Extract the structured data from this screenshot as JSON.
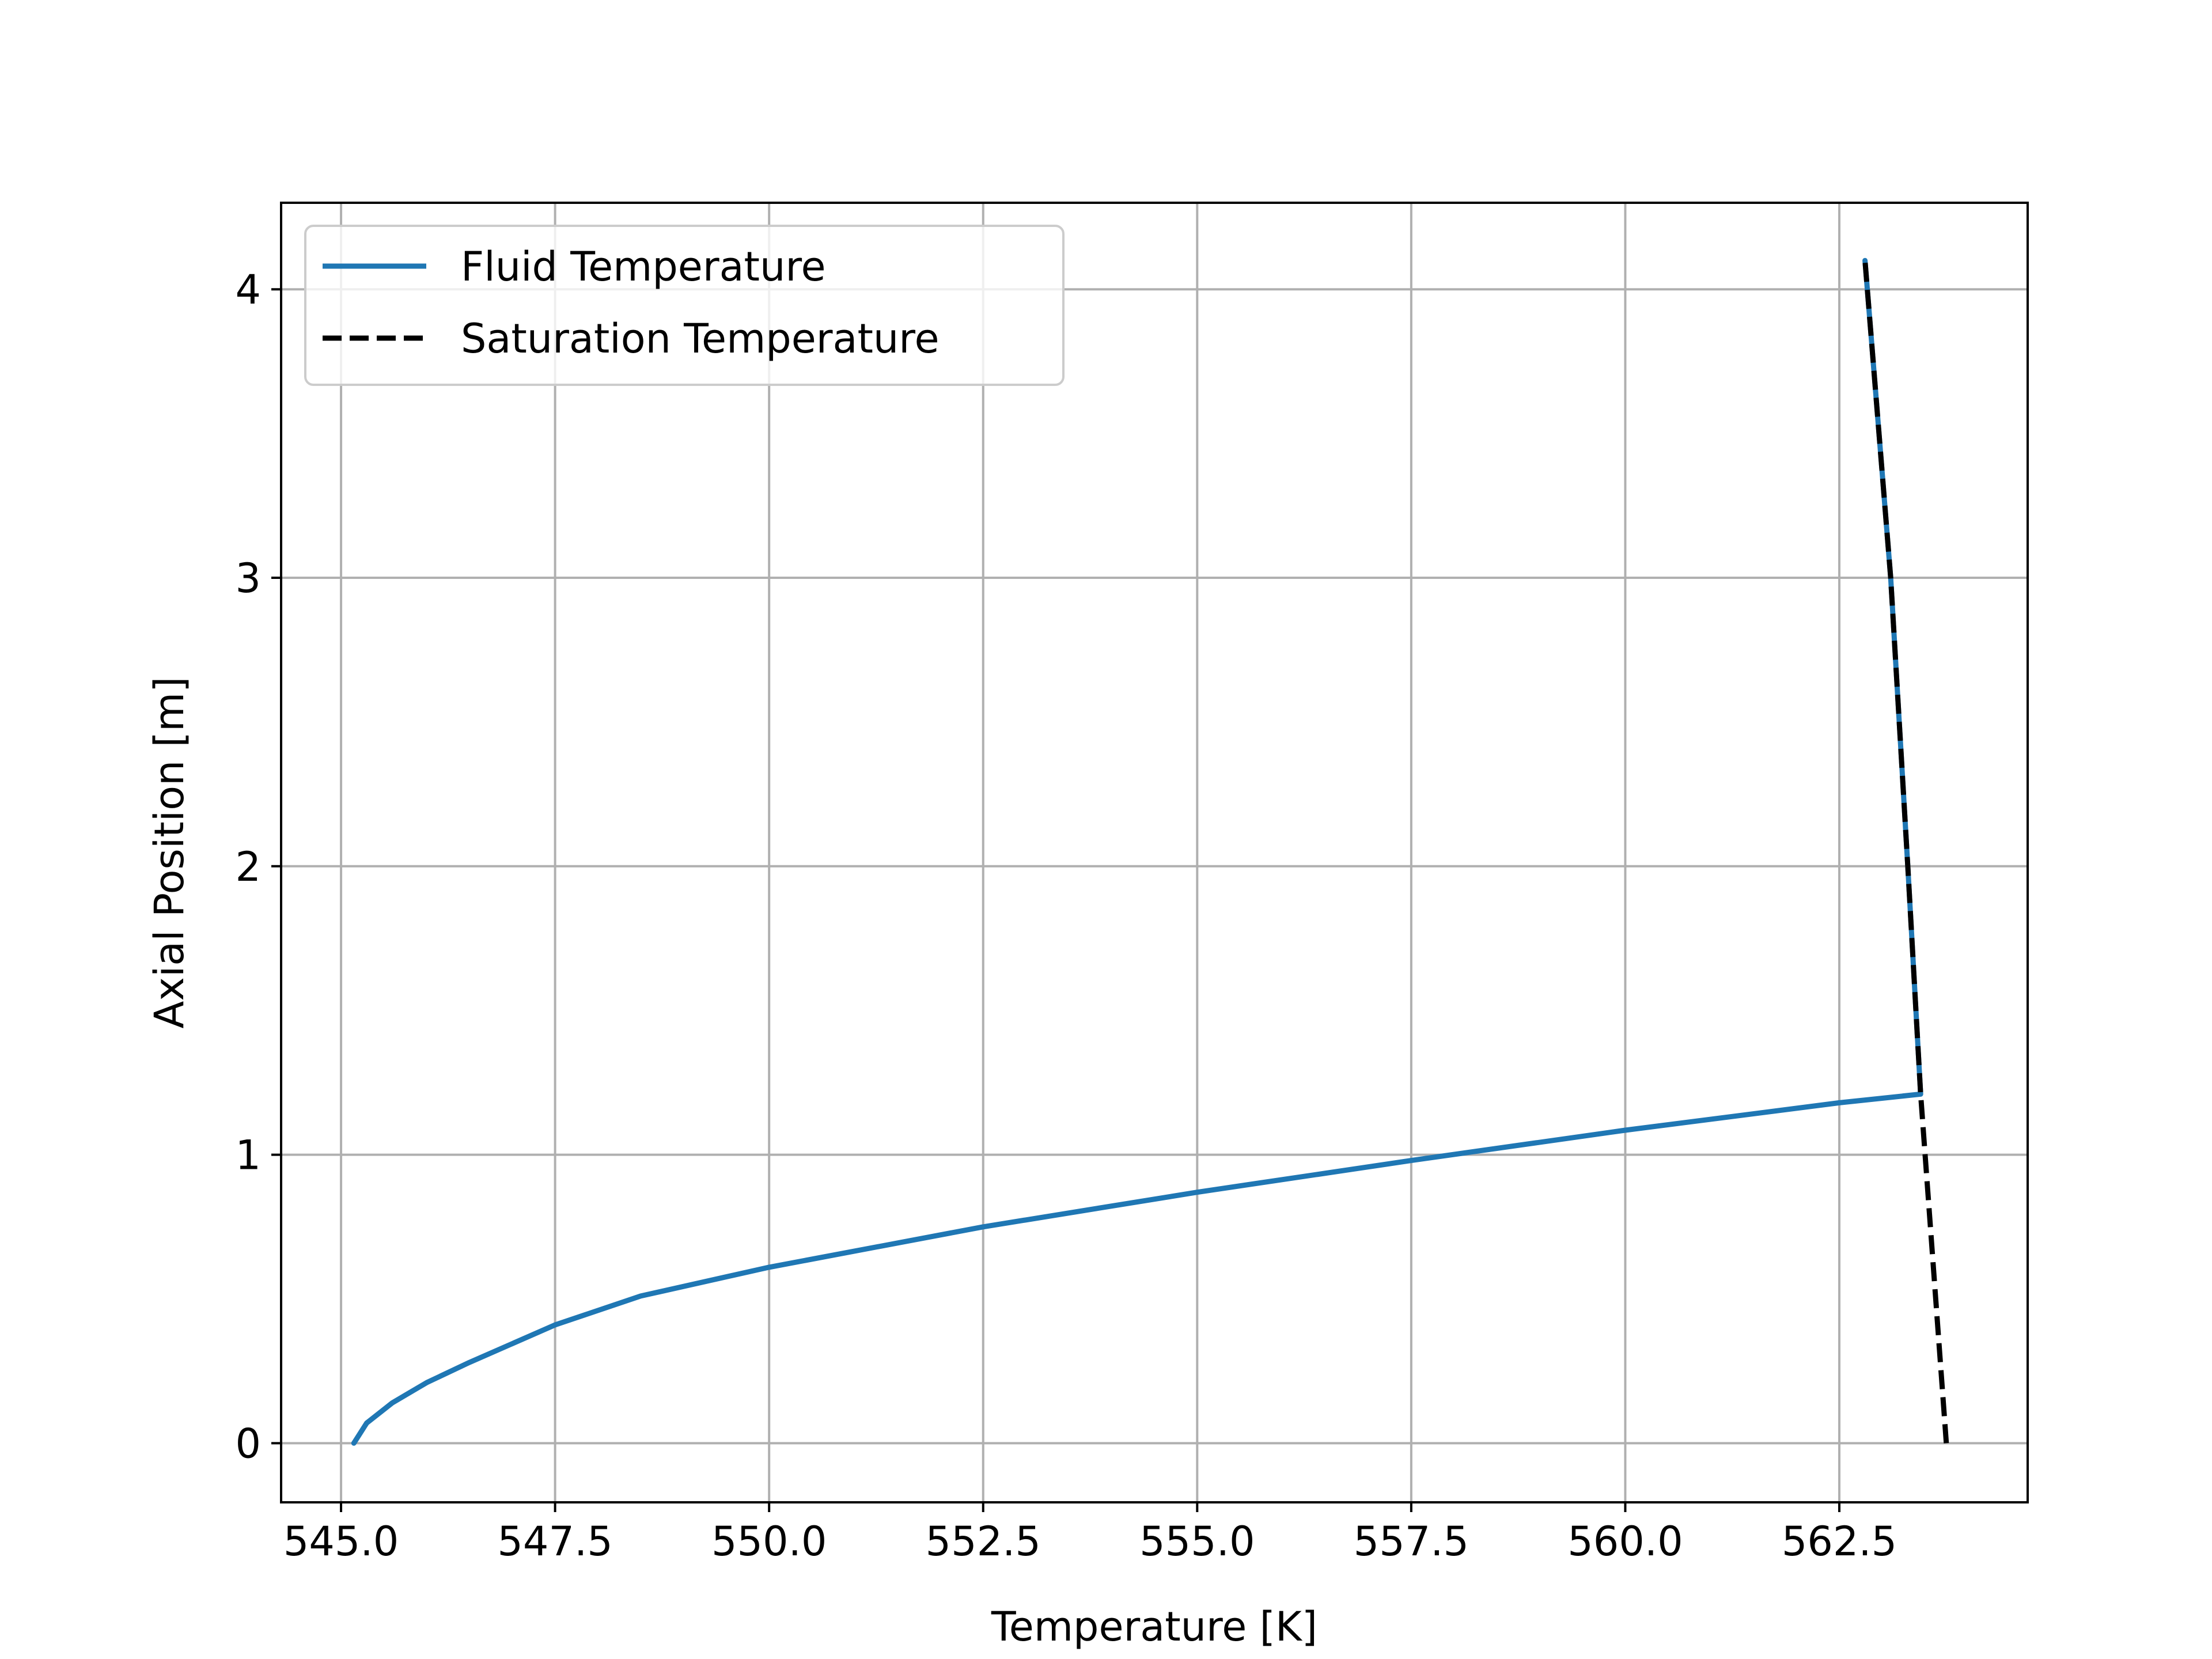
{
  "chart_data": {
    "type": "line",
    "title": "",
    "xlabel": "Temperature  [K]",
    "ylabel": "Axial Position  [m]",
    "xlim": [
      544.3,
      564.7
    ],
    "ylim": [
      -0.205,
      4.3
    ],
    "xticks": [
      545.0,
      547.5,
      550.0,
      552.5,
      555.0,
      557.5,
      560.0,
      562.5
    ],
    "xtick_labels": [
      "545.0",
      "547.5",
      "550.0",
      "552.5",
      "555.0",
      "557.5",
      "560.0",
      "562.5"
    ],
    "yticks": [
      0,
      1,
      2,
      3,
      4
    ],
    "ytick_labels": [
      "0",
      "1",
      "2",
      "3",
      "4"
    ],
    "grid": true,
    "legend_position": "upper-left",
    "series": [
      {
        "name": "Fluid Temperature",
        "color": "#1f77b4",
        "style": "solid",
        "points": [
          [
            545.15,
            0.0
          ],
          [
            545.3,
            0.07
          ],
          [
            545.6,
            0.14
          ],
          [
            546.0,
            0.21
          ],
          [
            546.5,
            0.28
          ],
          [
            547.5,
            0.41
          ],
          [
            548.5,
            0.51
          ],
          [
            550.0,
            0.61
          ],
          [
            552.5,
            0.75
          ],
          [
            555.0,
            0.87
          ],
          [
            557.5,
            0.98
          ],
          [
            560.0,
            1.085
          ],
          [
            562.5,
            1.18
          ],
          [
            563.45,
            1.21
          ],
          [
            563.3,
            2.0
          ],
          [
            563.1,
            3.0
          ],
          [
            562.8,
            4.1
          ]
        ]
      },
      {
        "name": "Saturation Temperature",
        "color": "#000000",
        "style": "dashed",
        "points": [
          [
            563.75,
            0.0
          ],
          [
            563.45,
            1.21
          ],
          [
            563.3,
            2.0
          ],
          [
            563.1,
            3.0
          ],
          [
            562.8,
            4.1
          ]
        ]
      }
    ]
  }
}
